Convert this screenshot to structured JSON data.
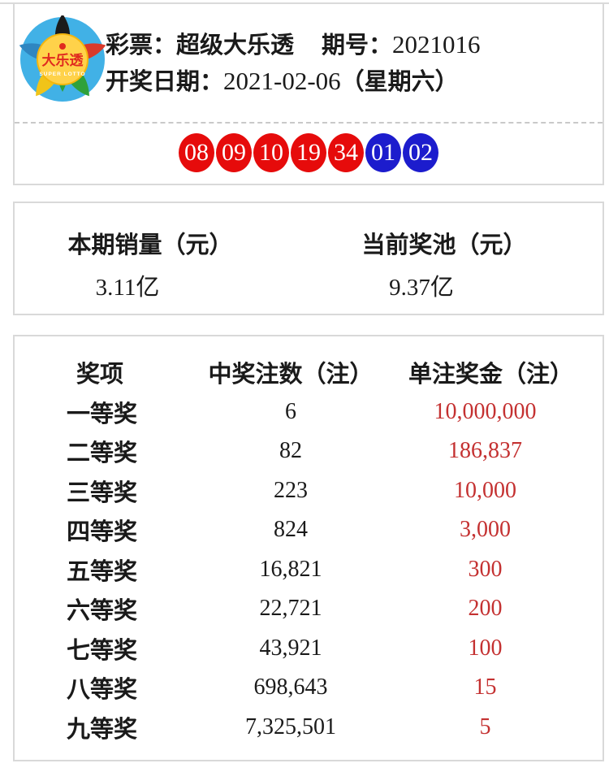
{
  "header": {
    "lottery_label": "彩票：超级大乐透",
    "issue_label": "期号：",
    "issue_value": "2021016",
    "date_label": "开奖日期：",
    "date_value": "2021-02-06",
    "date_week": "（星期六）",
    "logo": {
      "title": "大乐透",
      "subtitle": "SUPER LOTTO"
    }
  },
  "numbers": {
    "front": [
      "08",
      "09",
      "10",
      "19",
      "34"
    ],
    "back": [
      "01",
      "02"
    ],
    "front_color": "#e60b0b",
    "back_color": "#1c1ccd"
  },
  "stats": {
    "sales_label": "本期销量（元）",
    "sales_value": "3.11亿",
    "pool_label": "当前奖池（元）",
    "pool_value": "9.37亿"
  },
  "prize_table": {
    "headers": [
      "奖项",
      "中奖注数（注）",
      "单注奖金（注）"
    ],
    "prize_color": "#c43131",
    "rows": [
      {
        "level": "一等奖",
        "count": "6",
        "prize": "10,000,000"
      },
      {
        "level": "二等奖",
        "count": "82",
        "prize": "186,837"
      },
      {
        "level": "三等奖",
        "count": "223",
        "prize": "10,000"
      },
      {
        "level": "四等奖",
        "count": "824",
        "prize": "3,000"
      },
      {
        "level": "五等奖",
        "count": "16,821",
        "prize": "300"
      },
      {
        "level": "六等奖",
        "count": "22,721",
        "prize": "200"
      },
      {
        "level": "七等奖",
        "count": "43,921",
        "prize": "100"
      },
      {
        "level": "八等奖",
        "count": "698,643",
        "prize": "15"
      },
      {
        "level": "九等奖",
        "count": "7,325,501",
        "prize": "5"
      }
    ]
  }
}
